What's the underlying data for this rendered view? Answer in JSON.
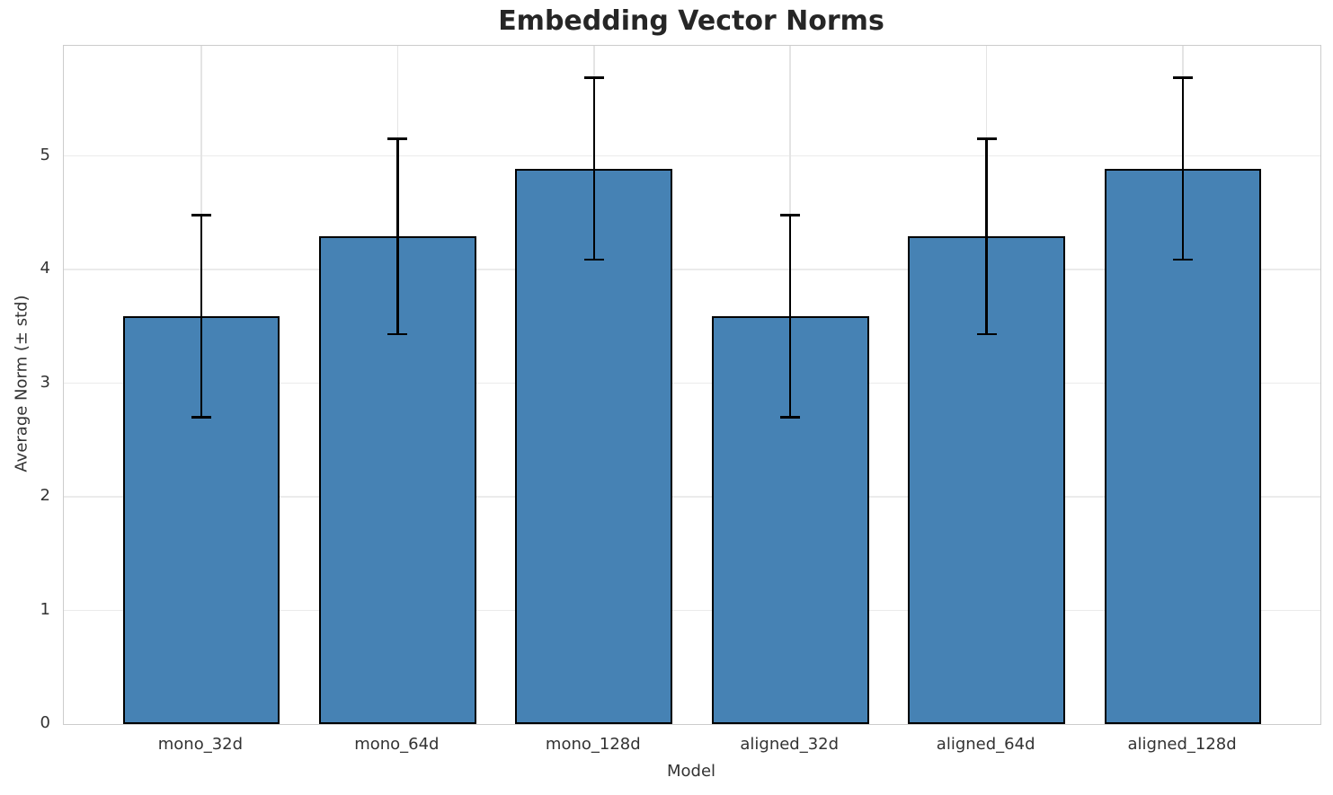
{
  "chart_data": {
    "type": "bar",
    "title": "Embedding Vector Norms",
    "xlabel": "Model",
    "ylabel": "Average Norm (± std)",
    "categories": [
      "mono_32d",
      "mono_64d",
      "mono_128d",
      "aligned_32d",
      "aligned_64d",
      "aligned_128d"
    ],
    "values": [
      3.59,
      4.29,
      4.89,
      3.59,
      4.29,
      4.89
    ],
    "errors": [
      0.89,
      0.86,
      0.8,
      0.89,
      0.86,
      0.8
    ],
    "y_ticks": [
      0,
      1,
      2,
      3,
      4,
      5
    ],
    "ylim": [
      0,
      5.97
    ],
    "xlim": [
      -0.7,
      5.7
    ],
    "bar_width_units": 0.8,
    "grid": true,
    "legend": "none",
    "colors": {
      "bar_fill": "#4682B4",
      "bar_edge": "#000000",
      "error_bar": "#000000",
      "grid_line": "#ebebeb",
      "spine": "#cccccc",
      "title_text": "#262626",
      "tick_text": "#333333"
    }
  }
}
